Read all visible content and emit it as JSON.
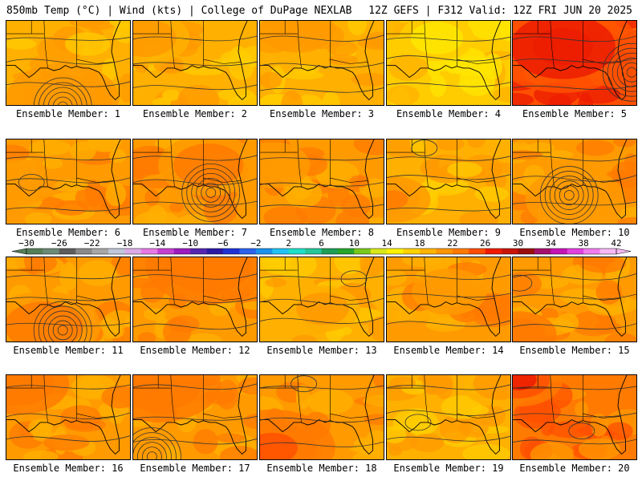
{
  "header": {
    "left": "850mb Temp (°C) | Wind (kts) | College of DuPage NEXLAB",
    "right": "12Z GEFS | F312 Valid: 12Z FRI JUN 20 2025"
  },
  "members": [
    {
      "label": "Ensemble Member: 1",
      "base": 19,
      "hot": [
        [
          0.45,
          0.9,
          0.45,
          2
        ]
      ],
      "cyclone": [
        0.45,
        1.0
      ],
      "loop": null
    },
    {
      "label": "Ensemble Member: 2",
      "base": 19,
      "hot": [
        [
          0.1,
          0.2,
          0.35,
          1
        ]
      ],
      "cyclone": null,
      "loop": null
    },
    {
      "label": "Ensemble Member: 3",
      "base": 19,
      "hot": [
        [
          0.3,
          0.1,
          0.3,
          2
        ]
      ],
      "cyclone": null,
      "loop": null
    },
    {
      "label": "Ensemble Member: 4",
      "base": 17,
      "hot": [
        [
          0.4,
          0.2,
          0.3,
          -2
        ]
      ],
      "cyclone": null,
      "loop": null
    },
    {
      "label": "Ensemble Member: 5",
      "base": 24,
      "hot": [
        [
          0.4,
          0.3,
          0.6,
          3
        ]
      ],
      "cyclone": [
        0.95,
        0.6
      ],
      "loop": null
    },
    {
      "label": "Ensemble Member: 6",
      "base": 20,
      "hot": [
        [
          0.1,
          0.5,
          0.3,
          1
        ]
      ],
      "cyclone": null,
      "loop": [
        0.2,
        0.5
      ]
    },
    {
      "label": "Ensemble Member: 7",
      "base": 21,
      "hot": [
        [
          0.6,
          0.3,
          0.4,
          1
        ]
      ],
      "cyclone": [
        0.62,
        0.62
      ],
      "loop": null
    },
    {
      "label": "Ensemble Member: 8",
      "base": 20,
      "hot": [
        [
          0.1,
          0.3,
          0.3,
          1
        ]
      ],
      "cyclone": null,
      "loop": null
    },
    {
      "label": "Ensemble Member: 9",
      "base": 19,
      "hot": [
        [
          0.05,
          0.7,
          0.3,
          3
        ]
      ],
      "cyclone": null,
      "loop": [
        0.3,
        0.1
      ]
    },
    {
      "label": "Ensemble Member: 10",
      "base": 20,
      "hot": [
        [
          0.5,
          0.7,
          0.4,
          1
        ]
      ],
      "cyclone": [
        0.45,
        0.65
      ],
      "loop": null
    },
    {
      "label": "Ensemble Member: 11",
      "base": 20,
      "hot": [
        [
          0.3,
          0.8,
          0.45,
          2
        ]
      ],
      "cyclone": [
        0.45,
        0.85
      ],
      "loop": null
    },
    {
      "label": "Ensemble Member: 12",
      "base": 21,
      "hot": [
        [
          0.6,
          0.1,
          0.5,
          2
        ]
      ],
      "cyclone": null,
      "loop": null
    },
    {
      "label": "Ensemble Member: 13",
      "base": 19,
      "hot": [
        [
          0.5,
          0.6,
          0.3,
          1
        ]
      ],
      "cyclone": null,
      "loop": [
        0.75,
        0.25
      ]
    },
    {
      "label": "Ensemble Member: 14",
      "base": 20,
      "hot": [
        [
          0.5,
          0.4,
          0.3,
          1
        ]
      ],
      "cyclone": null,
      "loop": null
    },
    {
      "label": "Ensemble Member: 15",
      "base": 21,
      "hot": [
        [
          0.05,
          0.9,
          0.3,
          2
        ]
      ],
      "cyclone": null,
      "loop": [
        0.05,
        0.3
      ]
    },
    {
      "label": "Ensemble Member: 16",
      "base": 21,
      "hot": [
        [
          0.1,
          0.1,
          0.4,
          2
        ]
      ],
      "cyclone": null,
      "loop": null
    },
    {
      "label": "Ensemble Member: 17",
      "base": 21,
      "hot": [
        [
          0.2,
          0.1,
          0.5,
          2
        ]
      ],
      "cyclone": [
        0.15,
        0.95
      ],
      "loop": null
    },
    {
      "label": "Ensemble Member: 18",
      "base": 21,
      "hot": [
        [
          0.1,
          0.85,
          0.5,
          4
        ]
      ],
      "cyclone": null,
      "loop": [
        0.35,
        0.1
      ]
    },
    {
      "label": "Ensemble Member: 19",
      "base": 19,
      "hot": [
        [
          0.9,
          0.1,
          0.3,
          1
        ]
      ],
      "cyclone": null,
      "loop": [
        0.25,
        0.55
      ]
    },
    {
      "label": "Ensemble Member: 20",
      "base": 22,
      "hot": [
        [
          0.05,
          0.05,
          0.35,
          5
        ]
      ],
      "cyclone": null,
      "loop": [
        0.55,
        0.65
      ]
    }
  ],
  "colorbar": {
    "ticks": [
      "−30",
      "−26",
      "−22",
      "−18",
      "−14",
      "−10",
      "−6",
      "−2",
      "2",
      "6",
      "10",
      "14",
      "18",
      "22",
      "26",
      "30",
      "34",
      "38",
      "42"
    ],
    "colors": [
      "#557f59",
      "#6c8a76",
      "#5d5d5d",
      "#8a8a8a",
      "#a7a7a7",
      "#bfc7d9",
      "#dcaae8",
      "#e779e6",
      "#c540d3",
      "#9c1cbf",
      "#5426b0",
      "#2b1aa5",
      "#1f32d6",
      "#2a62ec",
      "#1a92ec",
      "#21c2f4",
      "#1ee0c7",
      "#25c79a",
      "#1e9e55",
      "#27a62c",
      "#7ac81c",
      "#d8e81a",
      "#fff200",
      "#ffd200",
      "#ffb400",
      "#ff9600",
      "#ff7a00",
      "#ff4d00",
      "#f01a00",
      "#c8140a",
      "#9a0e0e",
      "#a4106e",
      "#c414b4",
      "#e240e0",
      "#f27cf0",
      "#f7b8f6"
    ]
  }
}
